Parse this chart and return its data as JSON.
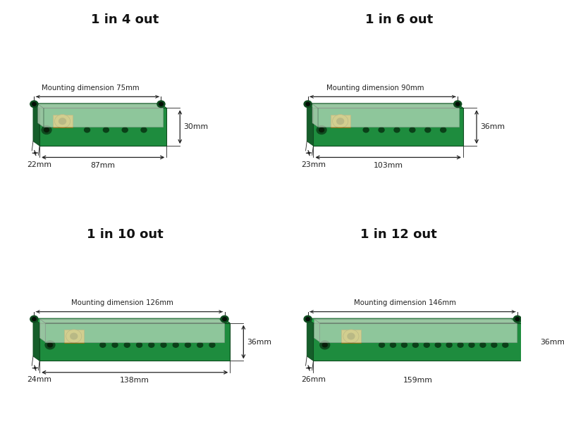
{
  "panels": [
    {
      "title": "1 in 4 out",
      "mounting_dim": "Mounting dimension 75mm",
      "width_mm": "87mm",
      "depth_mm": "22mm",
      "height_mm": "30mm",
      "num_holes": 4
    },
    {
      "title": "1 in 6 out",
      "mounting_dim": "Mounting dimension 90mm",
      "width_mm": "103mm",
      "depth_mm": "23mm",
      "height_mm": "36mm",
      "num_holes": 6
    },
    {
      "title": "1 in 10 out",
      "mounting_dim": "Mounting dimension 126mm",
      "width_mm": "138mm",
      "depth_mm": "24mm",
      "height_mm": "36mm",
      "num_holes": 10
    },
    {
      "title": "1 in 12 out",
      "mounting_dim": "Mounting dimension 146mm",
      "width_mm": "159mm",
      "depth_mm": "26mm",
      "height_mm": "36mm",
      "num_holes": 12
    }
  ],
  "bg_color": "#ffffff",
  "title_fontsize": 13,
  "green_front": "#1e8c3e",
  "green_top": "#22a848",
  "green_side": "#155e2a",
  "green_dark": "#0e4a1e",
  "cover_front": "#c8dfc8",
  "cover_top": "#b0ccb0",
  "gold_color": "#c8a020",
  "gold_dark": "#8a6a08",
  "dim_color": "#222222",
  "text_color": "#111111",
  "hole_color": "#0a4018"
}
